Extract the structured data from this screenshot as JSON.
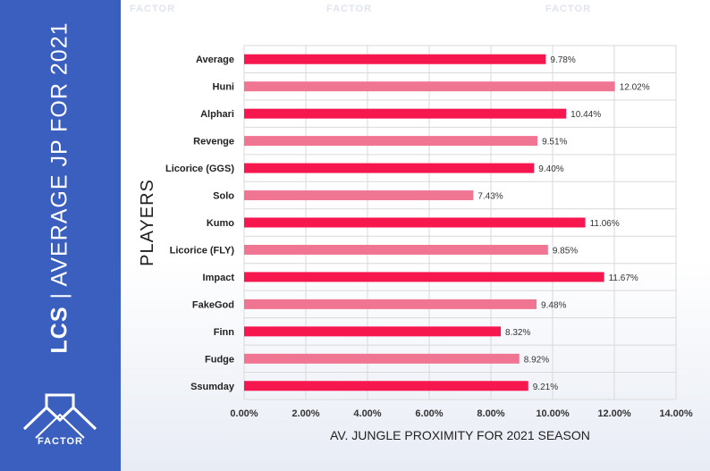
{
  "sidebar": {
    "brand": "LCS",
    "separator": "|",
    "subtitle": "AVERAGE JP FOR 2021",
    "logo_text": "FACTOR",
    "logo_icon": "factor-logo-icon"
  },
  "watermark": {
    "text": "FACTOR"
  },
  "colors": {
    "sidebar": "#3a5fbf",
    "bar_primary": "#f7174f",
    "bar_secondary": "#f07593",
    "grid": "#d9d9d9"
  },
  "chart_data": {
    "type": "bar",
    "orientation": "horizontal",
    "categories": [
      "Average",
      "Huni",
      "Alphari",
      "Revenge",
      "Licorice (GGS)",
      "Solo",
      "Kumo",
      "Licorice (FLY)",
      "Impact",
      "FakeGod",
      "Finn",
      "Fudge",
      "Ssumday"
    ],
    "values": [
      9.78,
      12.02,
      10.44,
      9.51,
      9.4,
      7.43,
      11.06,
      9.85,
      11.67,
      9.48,
      8.32,
      8.92,
      9.21
    ],
    "value_labels": [
      "9.78%",
      "12.02%",
      "10.44%",
      "9.51%",
      "9.40%",
      "7.43%",
      "11.06%",
      "9.85%",
      "11.67%",
      "9.48%",
      "8.32%",
      "8.92%",
      "9.21%"
    ],
    "ylabel": "PLAYERS",
    "xlabel": "AV. JUNGLE PROXIMITY FOR 2021 SEASON",
    "xlim": [
      0,
      14
    ],
    "xticks": [
      0,
      2,
      4,
      6,
      8,
      10,
      12,
      14
    ],
    "xtick_labels": [
      "0.00%",
      "2.00%",
      "4.00%",
      "6.00%",
      "8.00%",
      "10.00%",
      "12.00%",
      "14.00%"
    ],
    "grid": true
  }
}
